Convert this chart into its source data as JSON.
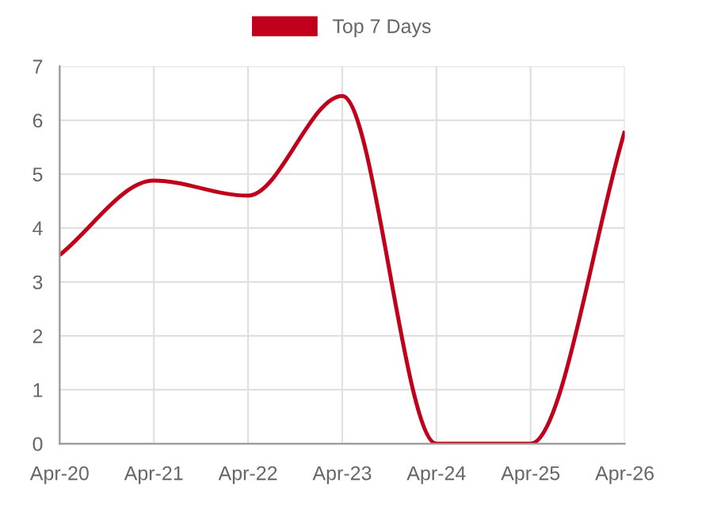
{
  "chart_data": {
    "type": "line",
    "categories": [
      "Apr-20",
      "Apr-21",
      "Apr-22",
      "Apr-23",
      "Apr-24",
      "Apr-25",
      "Apr-26"
    ],
    "series": [
      {
        "name": "Top 7 Days",
        "color": "#c0001a",
        "values": [
          3.5,
          4.88,
          4.6,
          6.45,
          0,
          0,
          5.8
        ]
      }
    ],
    "ylim": [
      0,
      7
    ],
    "yticks": [
      0,
      1,
      2,
      3,
      4,
      5,
      6,
      7
    ],
    "grid": true,
    "legend": "top",
    "marker": "none",
    "line_style": "solid"
  }
}
